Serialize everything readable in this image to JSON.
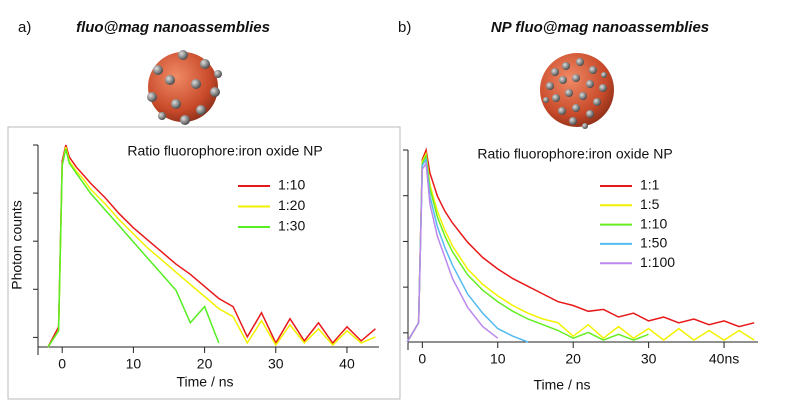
{
  "panels": [
    {
      "letter": "a)",
      "title": "fluo@mag nanoassemblies"
    },
    {
      "letter": "b)",
      "title": "NP fluo@mag nanoassemblies"
    }
  ],
  "chart_data": [
    {
      "type": "line",
      "legend_title": "Ratio fluorophore:iron oxide NP",
      "y_label": "Photon counts",
      "x_label": "Time / ns",
      "xlim": [
        -3.4,
        44.5
      ],
      "ylim": [
        0,
        1
      ],
      "xticks": [
        0,
        10,
        20,
        30,
        40
      ],
      "x": [
        -2,
        -0.5,
        0,
        0.5,
        1,
        2,
        3,
        4,
        6,
        8,
        10,
        12,
        14,
        16,
        18,
        20,
        22,
        24,
        26,
        28,
        30,
        32,
        34,
        36,
        38,
        40,
        42,
        44
      ],
      "series": [
        {
          "name": "1:10",
          "color": "#e8191a",
          "values": [
            0,
            0.1,
            0.92,
            1.0,
            0.94,
            0.89,
            0.85,
            0.81,
            0.74,
            0.66,
            0.59,
            0.53,
            0.47,
            0.41,
            0.36,
            0.3,
            0.24,
            0.2,
            0.05,
            0.17,
            0.02,
            0.14,
            0.03,
            0.12,
            0.02,
            0.1,
            0.03,
            0.09
          ]
        },
        {
          "name": "1:20",
          "color": "#f2f200",
          "values": [
            0,
            0.08,
            0.9,
            0.99,
            0.92,
            0.87,
            0.83,
            0.78,
            0.71,
            0.63,
            0.56,
            0.49,
            0.43,
            0.37,
            0.31,
            0.25,
            0.19,
            0.15,
            0.02,
            0.13,
            0.01,
            0.11,
            0.02,
            0.09,
            0.01,
            0.08,
            0.02,
            0.05
          ]
        },
        {
          "name": "1:30",
          "color": "#55ee22",
          "values": [
            0,
            0.08,
            0.9,
            0.98,
            0.91,
            0.86,
            0.81,
            0.76,
            0.68,
            0.6,
            0.52,
            0.44,
            0.36,
            0.28,
            0.12,
            0.2,
            0.02,
            null,
            null,
            null,
            null,
            null,
            null,
            null,
            null,
            null,
            null,
            null
          ]
        }
      ]
    },
    {
      "type": "line",
      "legend_title": "Ratio fluorophore:iron oxide NP",
      "x_label": "Time / ns",
      "xlim": [
        -1.9,
        44.5
      ],
      "ylim": [
        0,
        1
      ],
      "xticks": [
        0,
        10,
        20,
        30,
        {
          "value": 40,
          "label": "40ns"
        }
      ],
      "x": [
        -2,
        -0.5,
        0,
        0.5,
        1,
        2,
        3,
        4,
        6,
        8,
        10,
        12,
        14,
        16,
        18,
        20,
        22,
        24,
        26,
        28,
        30,
        32,
        34,
        36,
        38,
        40,
        42,
        44
      ],
      "series": [
        {
          "name": "1:1",
          "color": "#e8191a",
          "values": [
            0,
            0.1,
            0.95,
            1.0,
            0.88,
            0.76,
            0.68,
            0.62,
            0.52,
            0.44,
            0.38,
            0.33,
            0.29,
            0.25,
            0.21,
            0.19,
            0.16,
            0.17,
            0.13,
            0.15,
            0.11,
            0.13,
            0.1,
            0.12,
            0.09,
            0.11,
            0.08,
            0.1
          ]
        },
        {
          "name": "1:5",
          "color": "#f2f200",
          "values": [
            0,
            0.1,
            0.94,
            0.98,
            0.82,
            0.68,
            0.58,
            0.5,
            0.38,
            0.3,
            0.24,
            0.19,
            0.15,
            0.12,
            0.1,
            0.03,
            0.09,
            0.02,
            0.08,
            0.02,
            0.07,
            0.01,
            0.07,
            0.01,
            0.06,
            0.01,
            0.06,
            0.01
          ]
        },
        {
          "name": "1:10",
          "color": "#66ee22",
          "values": [
            0,
            0.1,
            0.93,
            0.97,
            0.8,
            0.65,
            0.55,
            0.47,
            0.35,
            0.27,
            0.21,
            0.16,
            0.12,
            0.09,
            0.06,
            0.02,
            0.05,
            0.01,
            0.04,
            0.01,
            0.04,
            null,
            null,
            null,
            null,
            null,
            null,
            null
          ]
        },
        {
          "name": "1:50",
          "color": "#55bbee",
          "values": [
            0,
            0.1,
            0.92,
            0.95,
            0.76,
            0.6,
            0.49,
            0.4,
            0.25,
            0.15,
            0.07,
            0.03,
            0.0,
            null,
            null,
            null,
            null,
            null,
            null,
            null,
            null,
            null,
            null,
            null,
            null,
            null,
            null,
            null
          ]
        },
        {
          "name": "1:100",
          "color": "#bb88ee",
          "values": [
            0,
            0.1,
            0.9,
            0.93,
            0.72,
            0.55,
            0.44,
            0.33,
            0.18,
            0.08,
            0.02,
            null,
            null,
            null,
            null,
            null,
            null,
            null,
            null,
            null,
            null,
            null,
            null,
            null,
            null,
            null,
            null,
            null
          ]
        }
      ]
    }
  ]
}
